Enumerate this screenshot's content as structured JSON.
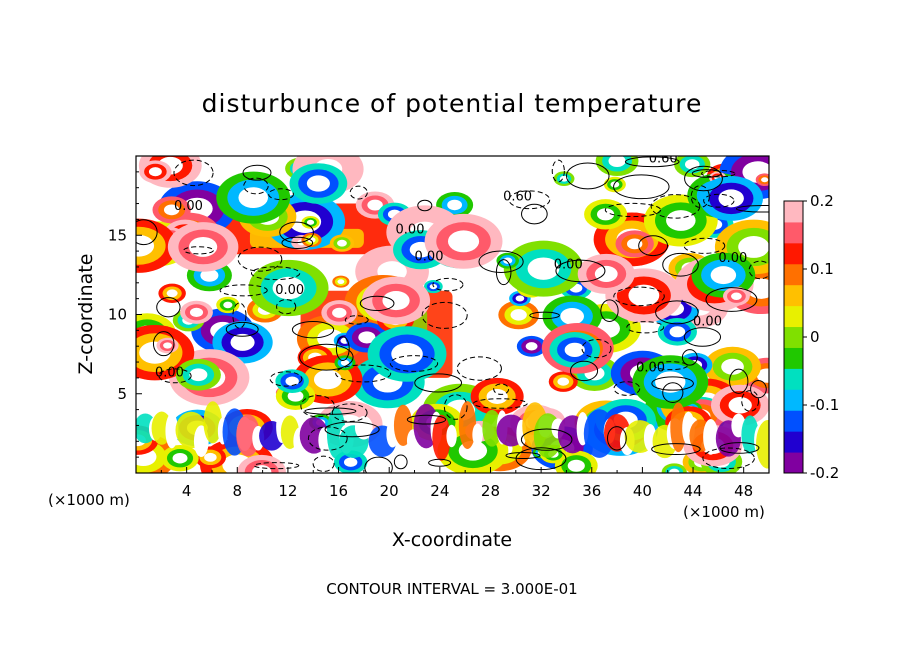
{
  "chart_data": {
    "type": "heatmap",
    "title": "disturbunce of potential temperature",
    "xlabel": "X-coordinate",
    "ylabel": "Z-coordinate",
    "x_unit_left": "(×1000 m)",
    "x_unit_right": "(×1000 m)",
    "xlim": [
      0,
      50
    ],
    "ylim": [
      0,
      20
    ],
    "x_ticks": [
      4,
      8,
      12,
      16,
      20,
      24,
      28,
      32,
      36,
      40,
      44,
      48
    ],
    "y_ticks": [
      5,
      10,
      15
    ],
    "colorbar": {
      "min": -0.2,
      "max": 0.2,
      "ticks": [
        "0.2",
        "0.1",
        "0",
        "-0.1",
        "-0.2"
      ],
      "colors": [
        "#8000a0",
        "#2000d0",
        "#0050ff",
        "#00b8ff",
        "#00e0c0",
        "#20c800",
        "#80e000",
        "#e8f000",
        "#ffc000",
        "#ff7000",
        "#ff1800",
        "#ff5a6a",
        "#ffb8c0"
      ]
    },
    "contour_interval": "CONTOUR INTERVAL = 3.000E-01",
    "contour_labels": [
      "0.00",
      "0.60"
    ]
  }
}
